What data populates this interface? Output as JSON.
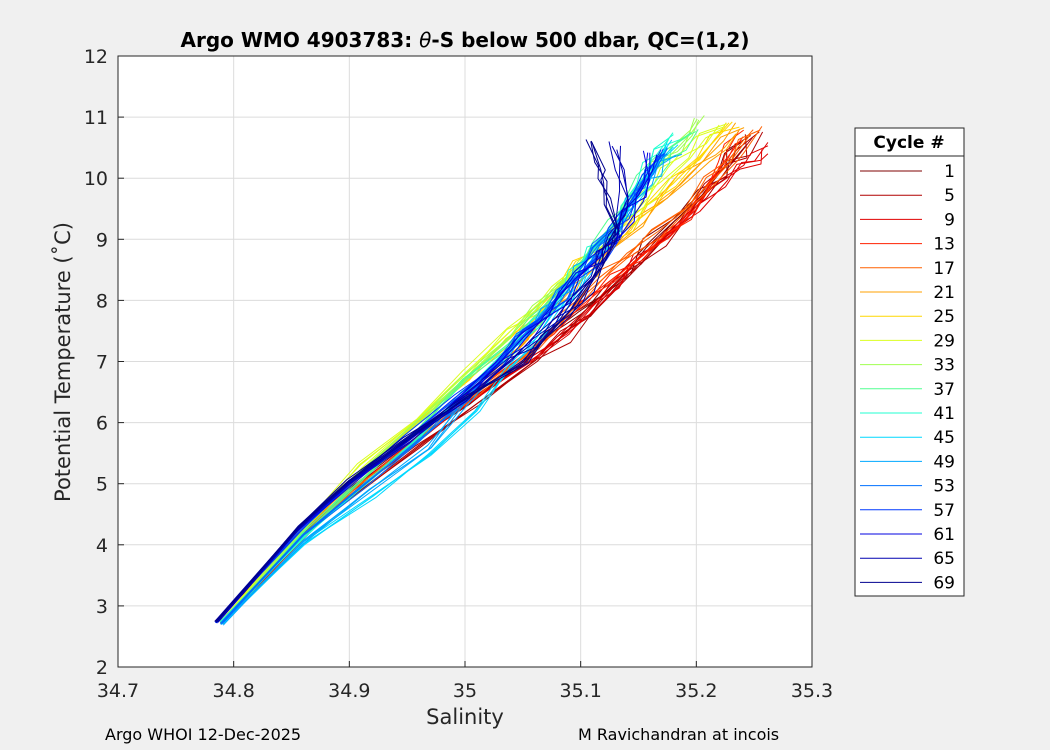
{
  "chart_data": {
    "type": "line",
    "title_prefix": "Argo WMO 4903783: ",
    "title_theta": "θ",
    "title_suffix": "-S below 500 dbar,  QC=(1,2)",
    "xlabel": "Salinity",
    "ylabel": "Potential Temperature (˚C)",
    "xlim": [
      34.7,
      35.3
    ],
    "ylim": [
      2,
      12
    ],
    "xticks": [
      "34.7",
      "34.8",
      "34.9",
      "35",
      "35.1",
      "35.2",
      "35.3"
    ],
    "yticks": [
      "2",
      "3",
      "4",
      "5",
      "6",
      "7",
      "8",
      "9",
      "10",
      "11",
      "12"
    ],
    "grid": true,
    "legend": {
      "title": "Cycle #",
      "placement": "outside-right",
      "entries": [
        "1",
        "5",
        "9",
        "13",
        "17",
        "21",
        "25",
        "29",
        "33",
        "37",
        "41",
        "45",
        "49",
        "53",
        "57",
        "61",
        "65",
        "69"
      ],
      "colors": [
        "#7f0000",
        "#b00000",
        "#e00000",
        "#ff2000",
        "#ff6000",
        "#ffa000",
        "#ffd700",
        "#dcff20",
        "#a0ff50",
        "#50ff90",
        "#20ffd0",
        "#00d8ff",
        "#00a8ff",
        "#0070ff",
        "#0038ff",
        "#0000e0",
        "#0000b0",
        "#00008f"
      ]
    },
    "series_profiles": [
      {
        "cycle": "1",
        "s": [
          34.785,
          34.86,
          34.9,
          34.95,
          35.0,
          35.05,
          35.1,
          35.14,
          35.18,
          35.22,
          35.24
        ],
        "t": [
          2.75,
          4.2,
          4.9,
          5.6,
          6.3,
          7.0,
          7.8,
          8.5,
          9.3,
          10.1,
          10.6
        ]
      },
      {
        "cycle": "5",
        "s": [
          34.79,
          34.86,
          34.91,
          34.96,
          35.01,
          35.06,
          35.11,
          35.15,
          35.19,
          35.23,
          35.25
        ],
        "t": [
          2.73,
          4.15,
          4.9,
          5.6,
          6.3,
          7.0,
          7.8,
          8.6,
          9.4,
          10.2,
          10.65
        ]
      },
      {
        "cycle": "9",
        "s": [
          34.79,
          34.86,
          34.9,
          34.95,
          35.0,
          35.06,
          35.11,
          35.15,
          35.2,
          35.24,
          35.26
        ],
        "t": [
          2.72,
          4.1,
          4.85,
          5.55,
          6.3,
          7.05,
          7.9,
          8.7,
          9.5,
          10.2,
          10.5
        ]
      },
      {
        "cycle": "13",
        "s": [
          34.79,
          34.86,
          34.9,
          34.95,
          35.0,
          35.05,
          35.1,
          35.15,
          35.19,
          35.22,
          35.24
        ],
        "t": [
          2.75,
          4.2,
          5.0,
          5.7,
          6.4,
          7.1,
          7.9,
          8.7,
          9.3,
          10.2,
          10.7
        ]
      },
      {
        "cycle": "17",
        "s": [
          34.79,
          34.86,
          34.91,
          34.96,
          35.01,
          35.06,
          35.1,
          35.14,
          35.19,
          35.23,
          35.25
        ],
        "t": [
          2.74,
          4.2,
          5.0,
          5.75,
          6.5,
          7.2,
          8.0,
          8.7,
          9.5,
          10.3,
          10.8
        ]
      },
      {
        "cycle": "21",
        "s": [
          34.79,
          34.86,
          34.91,
          34.96,
          35.01,
          35.05,
          35.09,
          35.13,
          35.17,
          35.21,
          35.24
        ],
        "t": [
          2.73,
          4.25,
          5.1,
          5.85,
          6.6,
          7.3,
          8.1,
          8.9,
          9.6,
          10.3,
          10.8
        ]
      },
      {
        "cycle": "25",
        "s": [
          34.79,
          34.86,
          34.91,
          34.96,
          35.0,
          35.04,
          35.08,
          35.12,
          35.16,
          35.2,
          35.23
        ],
        "t": [
          2.74,
          4.3,
          5.2,
          6.0,
          6.7,
          7.4,
          8.2,
          8.9,
          9.6,
          10.3,
          10.9
        ]
      },
      {
        "cycle": "29",
        "s": [
          34.79,
          34.86,
          34.91,
          34.96,
          35.0,
          35.04,
          35.08,
          35.12,
          35.16,
          35.19,
          35.22
        ],
        "t": [
          2.75,
          4.3,
          5.3,
          6.1,
          6.8,
          7.5,
          8.2,
          9.0,
          9.7,
          10.4,
          10.9
        ]
      },
      {
        "cycle": "33",
        "s": [
          34.79,
          34.86,
          34.91,
          34.96,
          35.0,
          35.04,
          35.08,
          35.12,
          35.15,
          35.18,
          35.2
        ],
        "t": [
          2.74,
          4.25,
          5.2,
          6.0,
          6.7,
          7.4,
          8.2,
          9.0,
          9.8,
          10.5,
          11.0
        ]
      },
      {
        "cycle": "37",
        "s": [
          34.79,
          34.86,
          34.91,
          34.96,
          35.0,
          35.04,
          35.08,
          35.11,
          35.14,
          35.17,
          35.2
        ],
        "t": [
          2.73,
          4.2,
          5.1,
          5.9,
          6.7,
          7.3,
          8.1,
          8.9,
          9.6,
          10.3,
          10.8
        ]
      },
      {
        "cycle": "41",
        "s": [
          34.79,
          34.86,
          34.91,
          34.96,
          35.0,
          35.04,
          35.08,
          35.11,
          35.14,
          35.16,
          35.18
        ],
        "t": [
          2.72,
          4.1,
          4.95,
          5.7,
          6.5,
          7.2,
          8.0,
          8.8,
          9.5,
          10.2,
          10.7
        ]
      },
      {
        "cycle": "45",
        "s": [
          34.79,
          34.86,
          34.92,
          34.97,
          35.01,
          35.04,
          35.08,
          35.11,
          35.14,
          35.16,
          35.18
        ],
        "t": [
          2.7,
          4.0,
          4.8,
          5.5,
          6.2,
          6.9,
          7.8,
          8.6,
          9.4,
          10.1,
          10.6
        ]
      },
      {
        "cycle": "49",
        "s": [
          34.79,
          34.86,
          34.92,
          34.97,
          35.0,
          35.03,
          35.07,
          35.1,
          35.13,
          35.16,
          35.18
        ],
        "t": [
          2.7,
          4.05,
          4.9,
          5.6,
          6.3,
          7.0,
          7.8,
          8.5,
          9.2,
          9.9,
          10.4
        ]
      },
      {
        "cycle": "53",
        "s": [
          34.79,
          34.86,
          34.91,
          34.96,
          35.0,
          35.03,
          35.07,
          35.1,
          35.13,
          35.15,
          35.17
        ],
        "t": [
          2.72,
          4.15,
          4.95,
          5.7,
          6.4,
          7.0,
          7.8,
          8.5,
          9.2,
          9.8,
          10.4
        ]
      },
      {
        "cycle": "57",
        "s": [
          34.785,
          34.855,
          34.9,
          34.95,
          34.99,
          35.03,
          35.07,
          35.1,
          35.13,
          35.15,
          35.17
        ],
        "t": [
          2.72,
          4.2,
          5.0,
          5.75,
          6.4,
          7.0,
          7.8,
          8.4,
          9.1,
          9.8,
          10.4
        ]
      },
      {
        "cycle": "61",
        "s": [
          34.785,
          34.855,
          34.9,
          34.95,
          35.0,
          35.03,
          35.07,
          35.1,
          35.13,
          35.15,
          35.16
        ],
        "t": [
          2.74,
          4.25,
          5.0,
          5.7,
          6.4,
          7.0,
          7.7,
          8.4,
          9.0,
          9.7,
          10.4
        ]
      },
      {
        "cycle": "65",
        "s": [
          34.785,
          34.855,
          34.9,
          34.95,
          35.0,
          35.04,
          35.08,
          35.11,
          35.13,
          35.14,
          35.13
        ],
        "t": [
          2.74,
          4.25,
          5.0,
          5.7,
          6.4,
          7.0,
          7.7,
          8.4,
          9.0,
          9.7,
          10.5
        ]
      },
      {
        "cycle": "69",
        "s": [
          34.785,
          34.855,
          34.9,
          34.95,
          35.0,
          35.05,
          35.09,
          35.12,
          35.13,
          35.12,
          35.11
        ],
        "t": [
          2.74,
          4.3,
          5.05,
          5.75,
          6.4,
          7.0,
          7.8,
          8.6,
          9.2,
          9.9,
          10.6
        ]
      }
    ]
  },
  "footer": {
    "left": "Argo WHOI 12-Dec-2025",
    "right": "M Ravichandran at incois"
  }
}
